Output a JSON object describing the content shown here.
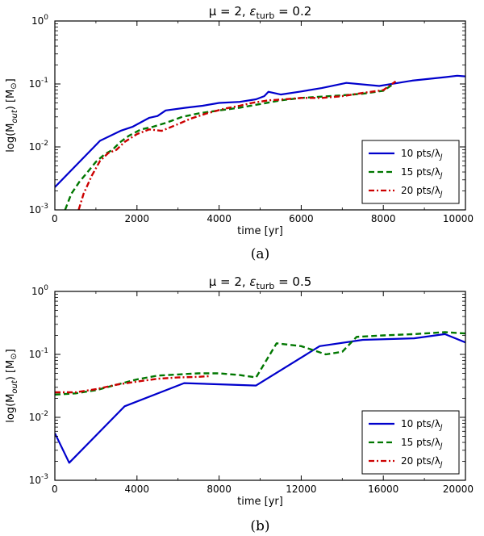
{
  "chart_data": [
    {
      "type": "line",
      "title": "μ = 2, εturb = 0.2",
      "title_parts": {
        "mu": "μ = 2, ",
        "eps": "ε",
        "sub": "turb",
        "rest": " = 0.2"
      },
      "xlabel": "time [yr]",
      "ylabel_parts": {
        "pre": "log(M",
        "sub": "out",
        "post": ") [M",
        "sun": "⊙",
        "end": "]"
      },
      "xlim": [
        0,
        10000
      ],
      "ylim": [
        0.001,
        1
      ],
      "yscale": "log",
      "x_ticks": [
        0,
        2000,
        4000,
        6000,
        8000,
        10000
      ],
      "x_tick_labels": [
        "0",
        "2000",
        "4000",
        "6000",
        "8000",
        "10000"
      ],
      "y_ticks": [
        {
          "base": "10",
          "exp": "-3"
        },
        {
          "base": "10",
          "exp": "-2"
        },
        {
          "base": "10",
          "exp": "-1"
        },
        {
          "base": "10",
          "exp": "0"
        }
      ],
      "legend_position": "bottom-right",
      "caption": "(a)",
      "series": [
        {
          "name": "10 pts/λJ",
          "label_main": "10 pts/λ",
          "label_sub": "J",
          "color": "#0000cc",
          "style": "solid",
          "points": [
            [
              0,
              0.0023
            ],
            [
              1100,
              0.0125
            ],
            [
              1600,
              0.018
            ],
            [
              1900,
              0.021
            ],
            [
              2300,
              0.029
            ],
            [
              2500,
              0.031
            ],
            [
              2700,
              0.038
            ],
            [
              3200,
              0.042
            ],
            [
              3600,
              0.045
            ],
            [
              4000,
              0.05
            ],
            [
              4500,
              0.052
            ],
            [
              4900,
              0.057
            ],
            [
              5100,
              0.064
            ],
            [
              5200,
              0.075
            ],
            [
              5500,
              0.068
            ],
            [
              6000,
              0.076
            ],
            [
              6500,
              0.086
            ],
            [
              7100,
              0.104
            ],
            [
              7900,
              0.093
            ],
            [
              8700,
              0.113
            ],
            [
              9500,
              0.128
            ],
            [
              9800,
              0.135
            ],
            [
              10000,
              0.132
            ]
          ]
        },
        {
          "name": "15 pts/λJ",
          "label_main": "15 pts/λ",
          "label_sub": "J",
          "color": "#007700",
          "style": "dashed",
          "points": [
            [
              250,
              0.001
            ],
            [
              400,
              0.0018
            ],
            [
              600,
              0.0028
            ],
            [
              800,
              0.004
            ],
            [
              1000,
              0.0058
            ],
            [
              1200,
              0.0075
            ],
            [
              1400,
              0.009
            ],
            [
              1600,
              0.012
            ],
            [
              1800,
              0.015
            ],
            [
              2100,
              0.019
            ],
            [
              2400,
              0.021
            ],
            [
              2700,
              0.024
            ],
            [
              3100,
              0.03
            ],
            [
              3500,
              0.034
            ],
            [
              4000,
              0.038
            ],
            [
              4500,
              0.042
            ],
            [
              5000,
              0.048
            ],
            [
              5500,
              0.055
            ],
            [
              6000,
              0.06
            ],
            [
              6500,
              0.063
            ],
            [
              7000,
              0.066
            ],
            [
              7500,
              0.07
            ],
            [
              8000,
              0.078
            ],
            [
              8250,
              0.1
            ]
          ]
        },
        {
          "name": "20 pts/λJ",
          "label_main": "20 pts/λ",
          "label_sub": "J",
          "color": "#cc0000",
          "style": "dashdot",
          "points": [
            [
              580,
              0.001
            ],
            [
              700,
              0.0018
            ],
            [
              900,
              0.0035
            ],
            [
              1100,
              0.006
            ],
            [
              1300,
              0.008
            ],
            [
              1500,
              0.009
            ],
            [
              1700,
              0.012
            ],
            [
              2000,
              0.016
            ],
            [
              2300,
              0.019
            ],
            [
              2600,
              0.018
            ],
            [
              3000,
              0.023
            ],
            [
              3300,
              0.028
            ],
            [
              3700,
              0.034
            ],
            [
              4100,
              0.04
            ],
            [
              4500,
              0.045
            ],
            [
              4800,
              0.05
            ],
            [
              5200,
              0.055
            ],
            [
              5600,
              0.057
            ],
            [
              6000,
              0.06
            ],
            [
              6500,
              0.06
            ],
            [
              7000,
              0.064
            ],
            [
              7500,
              0.072
            ],
            [
              8000,
              0.08
            ],
            [
              8300,
              0.11
            ]
          ]
        }
      ]
    },
    {
      "type": "line",
      "title": "μ = 2, εturb = 0.5",
      "title_parts": {
        "mu": "μ = 2, ",
        "eps": "ε",
        "sub": "turb",
        "rest": " = 0.5"
      },
      "xlabel": "time [yr]",
      "ylabel_parts": {
        "pre": "log(M",
        "sub": "out",
        "post": ") [M",
        "sun": "⊙",
        "end": "]"
      },
      "xlim": [
        0,
        20000
      ],
      "ylim": [
        0.001,
        1
      ],
      "yscale": "log",
      "x_ticks": [
        0,
        4000,
        8000,
        12000,
        16000,
        20000
      ],
      "x_tick_labels": [
        "0",
        "4000",
        "8000",
        "12000",
        "16000",
        "20000"
      ],
      "y_ticks": [
        {
          "base": "10",
          "exp": "-3"
        },
        {
          "base": "10",
          "exp": "-2"
        },
        {
          "base": "10",
          "exp": "-1"
        },
        {
          "base": "10",
          "exp": "0"
        }
      ],
      "legend_position": "bottom-right",
      "caption": "(b)",
      "series": [
        {
          "name": "10 pts/λJ",
          "label_main": "10 pts/λ",
          "label_sub": "J",
          "color": "#0000cc",
          "style": "solid",
          "points": [
            [
              0,
              0.0056
            ],
            [
              700,
              0.0019
            ],
            [
              3400,
              0.015
            ],
            [
              6300,
              0.035
            ],
            [
              9800,
              0.032
            ],
            [
              12900,
              0.135
            ],
            [
              15000,
              0.17
            ],
            [
              17500,
              0.18
            ],
            [
              19000,
              0.21
            ],
            [
              20000,
              0.155
            ]
          ]
        },
        {
          "name": "15 pts/λJ",
          "label_main": "15 pts/λ",
          "label_sub": "J",
          "color": "#007700",
          "style": "dashed",
          "points": [
            [
              0,
              0.023
            ],
            [
              1000,
              0.024
            ],
            [
              2000,
              0.027
            ],
            [
              3000,
              0.033
            ],
            [
              4000,
              0.04
            ],
            [
              5000,
              0.046
            ],
            [
              6000,
              0.048
            ],
            [
              7000,
              0.05
            ],
            [
              8000,
              0.05
            ],
            [
              9000,
              0.047
            ],
            [
              9800,
              0.043
            ],
            [
              10800,
              0.15
            ],
            [
              12000,
              0.135
            ],
            [
              13200,
              0.1
            ],
            [
              14000,
              0.11
            ],
            [
              14700,
              0.19
            ],
            [
              16000,
              0.2
            ],
            [
              17500,
              0.21
            ],
            [
              19000,
              0.225
            ],
            [
              20000,
              0.215
            ]
          ]
        },
        {
          "name": "20 pts/λJ",
          "label_main": "20 pts/λ",
          "label_sub": "J",
          "color": "#cc0000",
          "style": "dashdot",
          "points": [
            [
              0,
              0.025
            ],
            [
              1000,
              0.025
            ],
            [
              2000,
              0.028
            ],
            [
              3000,
              0.033
            ],
            [
              4000,
              0.037
            ],
            [
              5000,
              0.041
            ],
            [
              6000,
              0.043
            ],
            [
              7000,
              0.044
            ],
            [
              7500,
              0.045
            ]
          ]
        }
      ]
    }
  ]
}
